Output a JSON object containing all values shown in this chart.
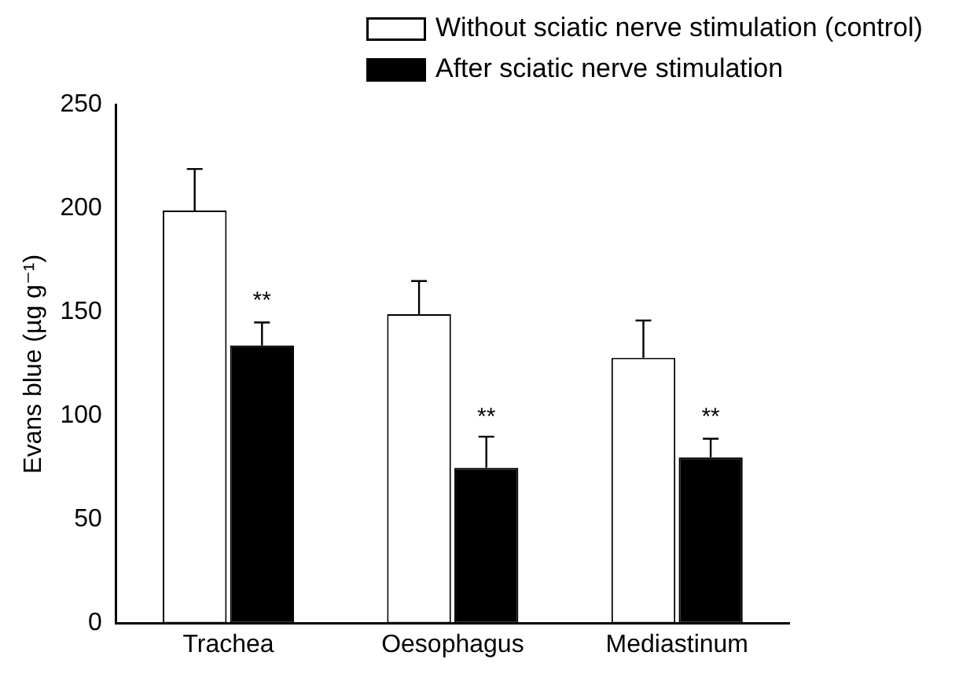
{
  "chart_data": {
    "type": "bar",
    "ylabel": "Evans blue (µg g⁻¹)",
    "categories": [
      "Trachea",
      "Oesophagus",
      "Mediastinum"
    ],
    "series": [
      {
        "name": "Without sciatic nerve stimulation (control)",
        "color": "#ffffff",
        "values": [
          199,
          149,
          128
        ],
        "errors": [
          [
            199,
            219
          ],
          [
            149,
            165
          ],
          [
            128,
            146
          ]
        ]
      },
      {
        "name": "After sciatic nerve stimulation",
        "color": "#000000",
        "values": [
          134,
          75,
          80
        ],
        "errors": [
          [
            134,
            145
          ],
          [
            75,
            90
          ],
          [
            80,
            89
          ]
        ]
      }
    ],
    "ylim": [
      0,
      250
    ],
    "yticks": [
      0,
      50,
      100,
      150,
      200,
      250
    ],
    "grid": false,
    "legend": "top right",
    "annotations": [
      {
        "text": "**",
        "x": "Trachea",
        "y": 154
      },
      {
        "text": "**",
        "x": "Oesophagus",
        "y": 98
      },
      {
        "text": "**",
        "x": "Mediastinum",
        "y": 98
      }
    ]
  }
}
